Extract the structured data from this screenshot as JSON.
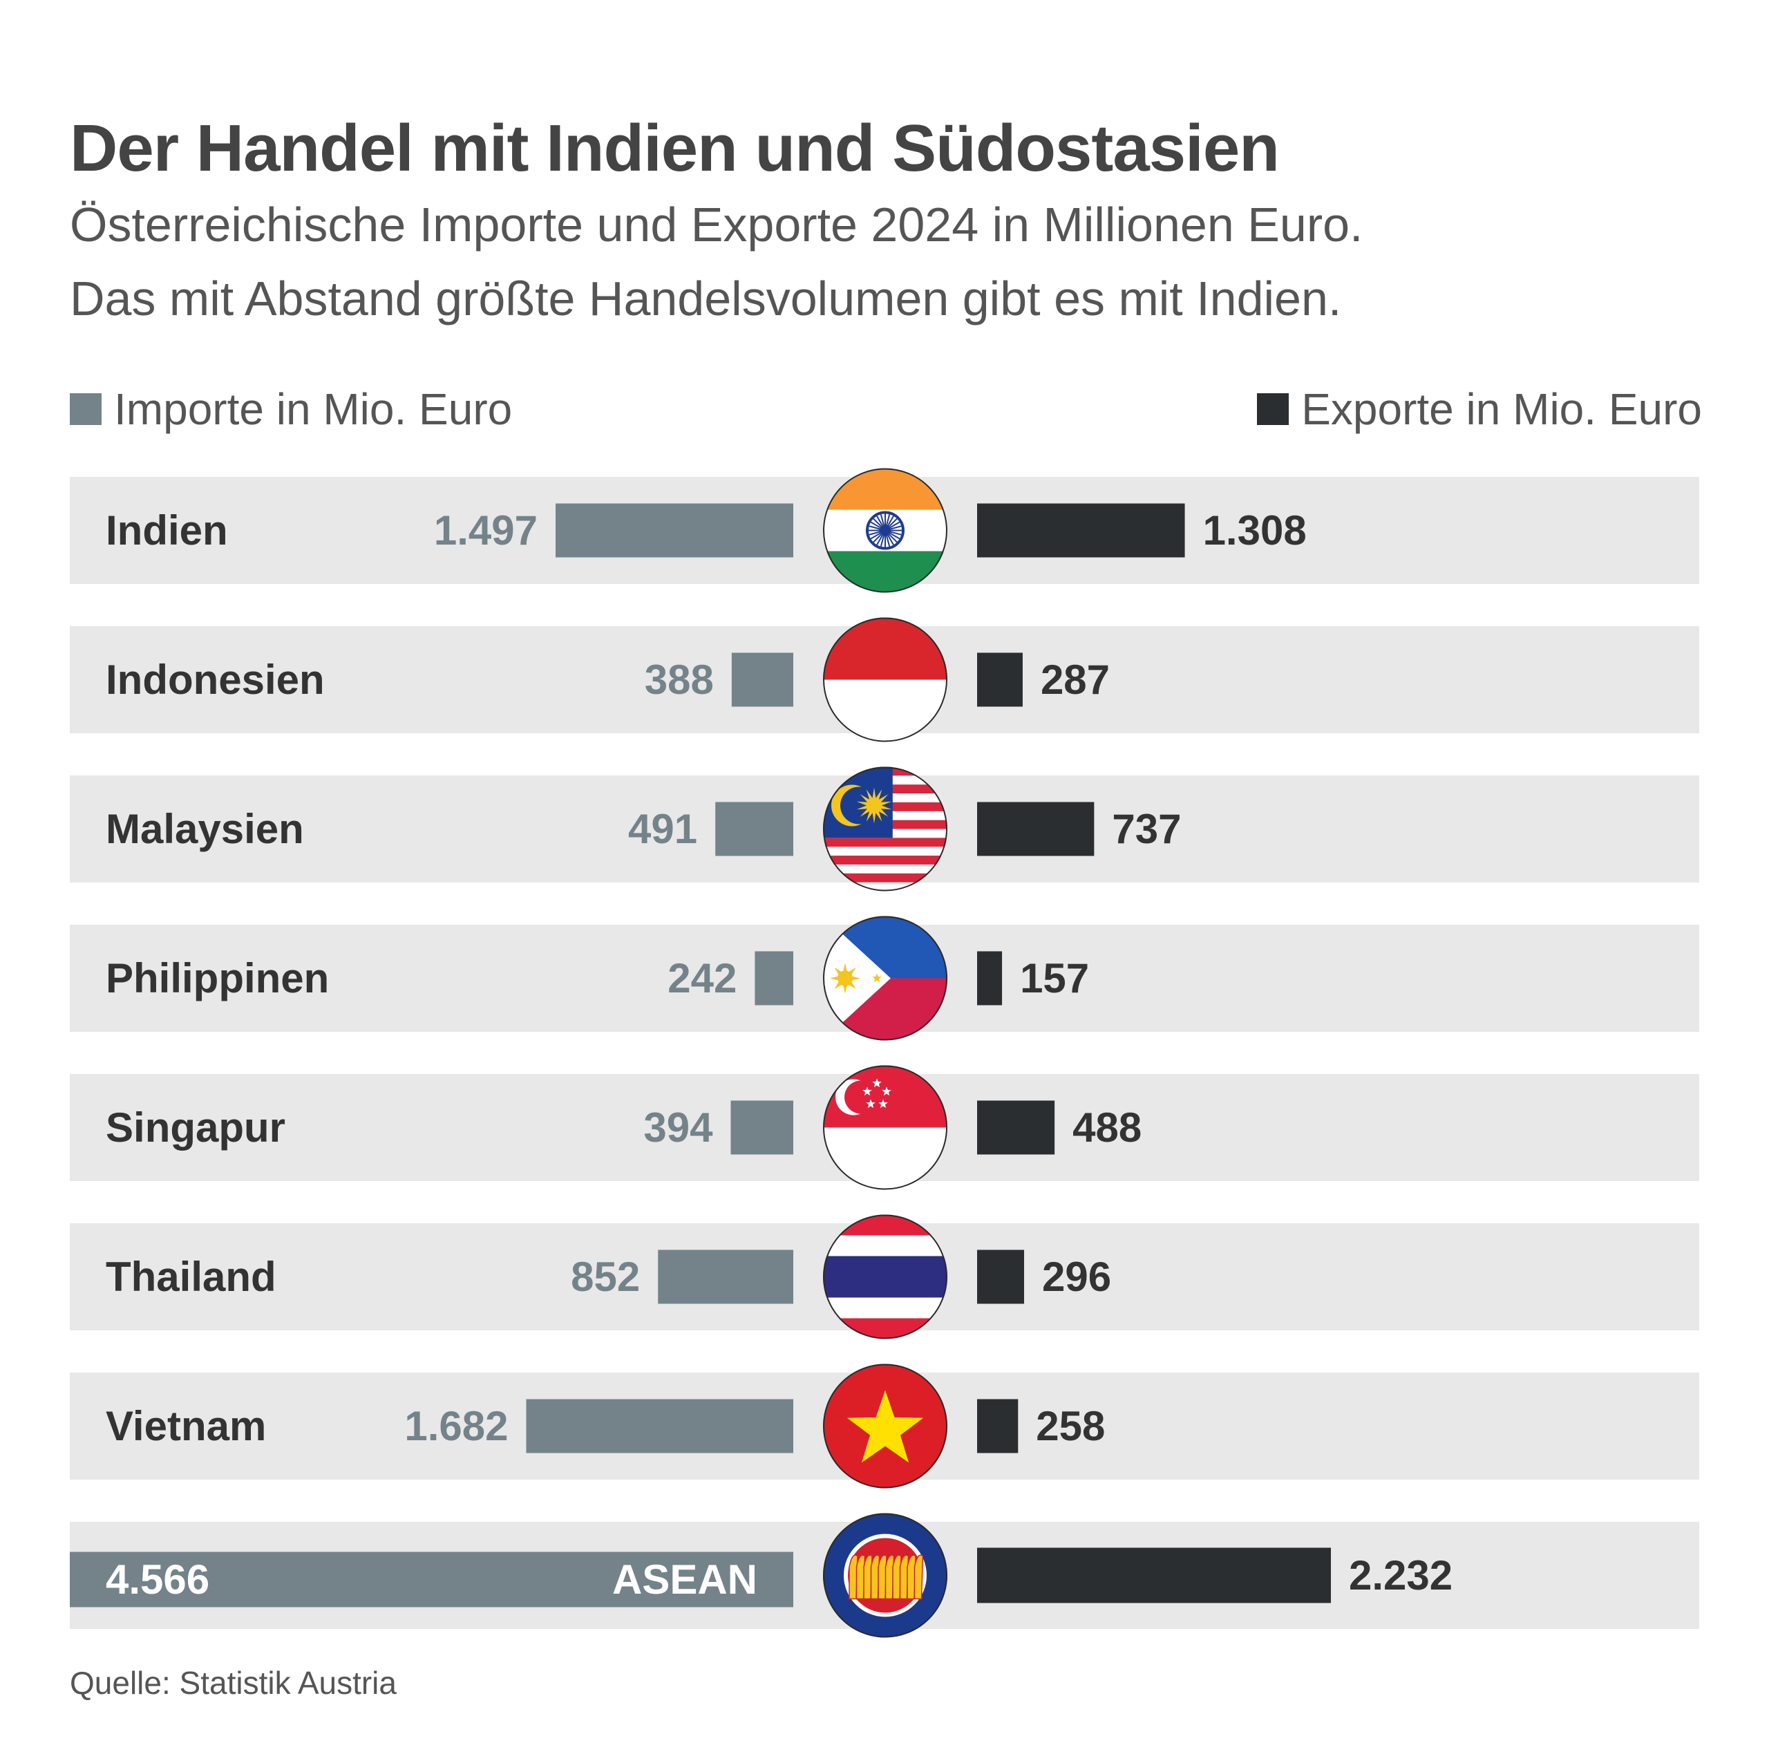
{
  "title": "Der Handel mit Indien und Südostasien",
  "subtitle_lines": [
    "Österreichische Importe und Exporte 2024 in Millionen Euro.",
    "Das mit Abstand größte Handelsvolumen gibt es mit Indien."
  ],
  "legend": {
    "imports": "Importe in Mio. Euro",
    "exports": "Exporte in Mio. Euro"
  },
  "source": "Quelle: Statistik Austria",
  "colors": {
    "imports": "#74838a",
    "exports": "#2a2e30",
    "row_background": "#e8e8e8",
    "country_label": "#333333",
    "import_value": "#74838a",
    "export_value": "#333333"
  },
  "chart_data": {
    "type": "bar",
    "orientation": "horizontal-diverging",
    "categories": [
      "Indien",
      "Indonesien",
      "Malaysien",
      "Philippinen",
      "Singapur",
      "Thailand",
      "Vietnam",
      "ASEAN"
    ],
    "series": [
      {
        "name": "Importe in Mio. Euro",
        "values": [
          1497,
          388,
          491,
          242,
          394,
          852,
          1682,
          4566
        ],
        "labels": [
          "1.497",
          "388",
          "491",
          "242",
          "394",
          "852",
          "1.682",
          "4.566"
        ]
      },
      {
        "name": "Exporte in Mio. Euro",
        "values": [
          1308,
          287,
          737,
          157,
          488,
          296,
          258,
          2232
        ],
        "labels": [
          "1.308",
          "287",
          "737",
          "157",
          "488",
          "296",
          "258",
          "2.232"
        ]
      }
    ],
    "flags": [
      "india-flag-icon",
      "indonesia-flag-icon",
      "malaysia-flag-icon",
      "philippines-flag-icon",
      "singapore-flag-icon",
      "thailand-flag-icon",
      "vietnam-flag-icon",
      "asean-emblem-icon"
    ],
    "title": "Der Handel mit Indien und Südostasien",
    "xlabel": "",
    "ylabel": "",
    "grid": false,
    "legend_position": "top"
  }
}
